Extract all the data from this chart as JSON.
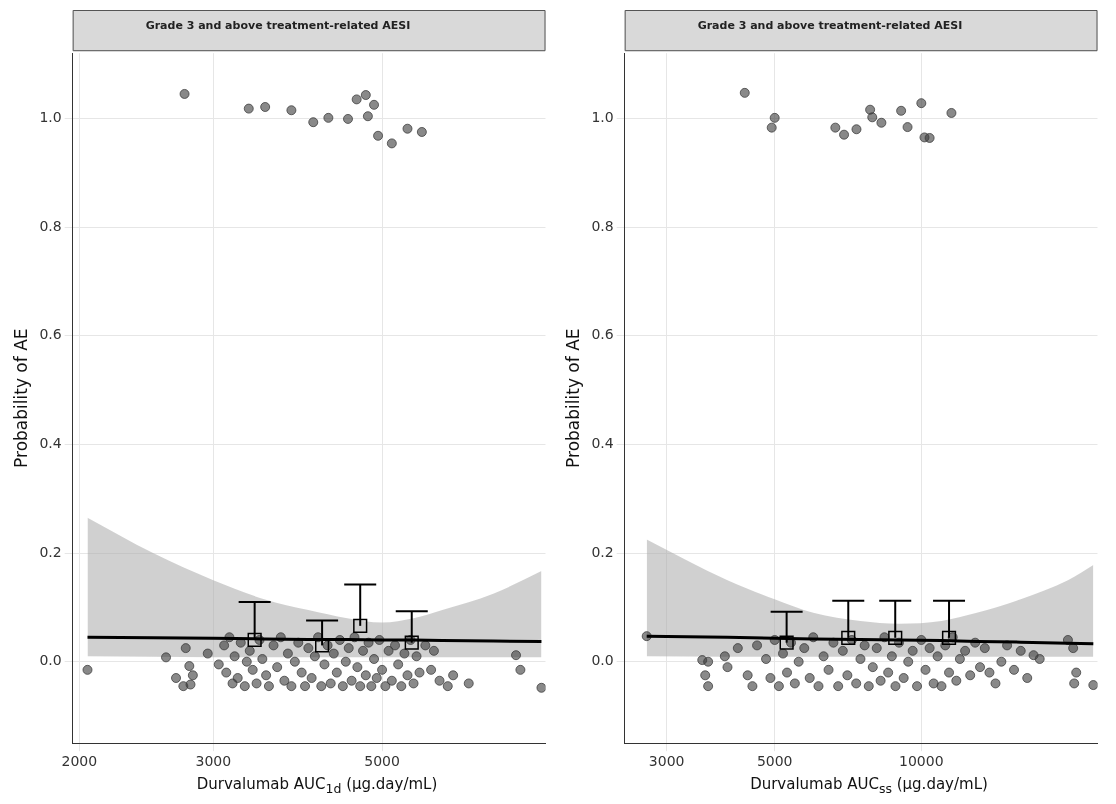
{
  "chart_data": [
    {
      "type": "scatter",
      "title": "Grade 3 and above treatment-related AESI",
      "xlabel": "Durvalumab AUC$_{1d}$ (µg.day/mL)",
      "ylabel": "Probability of AE",
      "log": "x",
      "grid": true,
      "xlim": [
        1960,
        8200
      ],
      "xticks": [
        2000,
        3000,
        5000
      ],
      "ylim": [
        -0.15,
        1.12
      ],
      "yticks": [
        {
          "value": 0,
          "label": "0.0"
        },
        {
          "value": 0.2,
          "label": "0.2"
        },
        {
          "value": 0.4,
          "label": "0.4"
        },
        {
          "value": 0.6,
          "label": "0.6"
        },
        {
          "value": 0.8,
          "label": "0.8"
        },
        {
          "value": 1,
          "label": "1.0"
        }
      ],
      "series": [
        {
          "type": "scatter",
          "marker": "circle",
          "color": "#3a3a3a",
          "x": [
            2750,
            3340,
            3510,
            3800,
            4060,
            4250,
            4510,
            4630,
            4760,
            4880,
            4790,
            4940,
            5150,
            5400,
            5640,
            2050,
            2600,
            2680,
            2740,
            2760,
            2790,
            2800,
            2820,
            2950,
            3050,
            3100,
            3120,
            3150,
            3180,
            3200,
            3230,
            3260,
            3300,
            3320,
            3350,
            3380,
            3420,
            3450,
            3480,
            3520,
            3550,
            3600,
            3640,
            3680,
            3720,
            3760,
            3800,
            3840,
            3880,
            3920,
            3960,
            4000,
            4040,
            4080,
            4120,
            4160,
            4200,
            4240,
            4280,
            4320,
            4360,
            4400,
            4440,
            4480,
            4520,
            4560,
            4600,
            4640,
            4680,
            4720,
            4760,
            4800,
            4840,
            4880,
            4920,
            4960,
            5000,
            5050,
            5100,
            5150,
            5200,
            5250,
            5300,
            5350,
            5400,
            5450,
            5500,
            5550,
            5600,
            5700,
            5800,
            5850,
            5950,
            6100,
            6200,
            6500,
            7500,
            7600,
            8100
          ],
          "values": [
            1.045,
            1.018,
            1.021,
            1.015,
            0.993,
            1.001,
            0.999,
            1.035,
            1.043,
            1.025,
            1.004,
            0.968,
            0.954,
            0.981,
            0.975,
            -0.015,
            0.008,
            -0.03,
            -0.045,
            0.025,
            -0.008,
            -0.042,
            -0.025,
            0.015,
            -0.005,
            0.03,
            -0.02,
            0.045,
            -0.04,
            0.01,
            -0.03,
            0.035,
            -0.045,
            0,
            0.02,
            -0.015,
            -0.04,
            0.04,
            0.005,
            -0.025,
            -0.045,
            0.03,
            -0.01,
            0.045,
            -0.035,
            0.015,
            -0.045,
            0,
            0.035,
            -0.02,
            -0.045,
            0.025,
            -0.03,
            0.01,
            0.045,
            -0.045,
            -0.005,
            0.03,
            -0.04,
            0.015,
            -0.02,
            0.04,
            -0.045,
            0,
            0.025,
            -0.035,
            0.045,
            -0.01,
            -0.045,
            0.02,
            -0.025,
            0.035,
            -0.045,
            0.005,
            -0.03,
            0.04,
            -0.015,
            -0.045,
            0.02,
            -0.035,
            0.03,
            -0.005,
            -0.045,
            0.015,
            -0.025,
            0.04,
            -0.04,
            0.01,
            -0.02,
            0.03,
            -0.015,
            0.02,
            -0.035,
            -0.045,
            -0.025,
            -0.04,
            0.012,
            -0.015,
            -0.048
          ]
        },
        {
          "type": "line",
          "color": "#000000",
          "x": [
            2050,
            2500,
            3000,
            3500,
            4000,
            4500,
            5000,
            5500,
            6000,
            7000,
            8100
          ],
          "values": [
            0.045,
            0.044,
            0.043,
            0.042,
            0.041,
            0.041,
            0.04,
            0.04,
            0.039,
            0.038,
            0.037
          ],
          "lower": [
            0.01,
            0.009,
            0.008,
            0.008,
            0.008,
            0.008,
            0.008,
            0.008,
            0.008,
            0.008,
            0.008
          ],
          "upper": [
            0.265,
            0.2,
            0.15,
            0.115,
            0.095,
            0.08,
            0.072,
            0.08,
            0.095,
            0.125,
            0.167
          ]
        },
        {
          "type": "scatter",
          "marker": "square",
          "color": "#000000",
          "x": [
            3400,
            4170,
            4680,
            5470
          ],
          "values": [
            0.04,
            0.03,
            0.066,
            0.035
          ],
          "errors": [
            [
              0.04,
              0.11
            ],
            [
              0.03,
              0.076
            ],
            [
              0.066,
              0.142
            ],
            [
              0.035,
              0.093
            ]
          ]
        }
      ]
    },
    {
      "type": "scatter",
      "title": "Grade 3 and above treatment-related AESI",
      "xlabel": "Durvalumab AUC$_{ss}$ (µg.day/mL)",
      "ylabel": "Probability of AE",
      "log": "x",
      "grid": true,
      "xlim": [
        2460,
        23000
      ],
      "xticks": [
        3000,
        5000,
        10000
      ],
      "ylim": [
        -0.15,
        1.12
      ],
      "yticks": [
        {
          "value": 0,
          "label": "0.0"
        },
        {
          "value": 0.2,
          "label": "0.2"
        },
        {
          "value": 0.4,
          "label": "0.4"
        },
        {
          "value": 0.6,
          "label": "0.6"
        },
        {
          "value": 0.8,
          "label": "0.8"
        },
        {
          "value": 1,
          "label": "1.0"
        }
      ],
      "series": [
        {
          "type": "scatter",
          "marker": "circle",
          "color": "#3a3a3a",
          "x": [
            4340,
            5000,
            4930,
            6660,
            6940,
            7360,
            7850,
            7930,
            8280,
            9090,
            9370,
            10000,
            10150,
            10400,
            11530,
            2730,
            3550,
            3600,
            3650,
            3650,
            3950,
            4000,
            4200,
            4400,
            4500,
            4600,
            4800,
            4900,
            5000,
            5100,
            5200,
            5300,
            5400,
            5500,
            5600,
            5750,
            5900,
            6000,
            6150,
            6300,
            6450,
            6600,
            6750,
            6900,
            7050,
            7200,
            7350,
            7500,
            7650,
            7800,
            7950,
            8100,
            8250,
            8400,
            8550,
            8700,
            8850,
            9000,
            9200,
            9400,
            9600,
            9800,
            10000,
            10200,
            10400,
            10600,
            10800,
            11000,
            11200,
            11400,
            11600,
            11800,
            12000,
            12300,
            12600,
            12900,
            13200,
            13500,
            13800,
            14200,
            14600,
            15000,
            15500,
            16000,
            16500,
            17000,
            17500,
            20000,
            20500,
            20800,
            20600,
            22550
          ],
          "values": [
            1.047,
            1.001,
            0.983,
            0.983,
            0.97,
            0.98,
            1.016,
            1.002,
            0.992,
            1.014,
            0.984,
            1.028,
            0.965,
            0.964,
            1.01,
            0.047,
            0.003,
            -0.025,
            -0.045,
            0,
            0.01,
            -0.01,
            0.025,
            -0.025,
            -0.045,
            0.03,
            0.005,
            -0.03,
            0.04,
            -0.045,
            0.015,
            -0.02,
            0.035,
            -0.04,
            0,
            0.025,
            -0.03,
            0.045,
            -0.045,
            0.01,
            -0.015,
            0.035,
            -0.045,
            0.02,
            -0.025,
            0.04,
            -0.04,
            0.005,
            0.03,
            -0.045,
            -0.01,
            0.025,
            -0.035,
            0.045,
            -0.02,
            0.01,
            -0.045,
            0.035,
            -0.03,
            0,
            0.02,
            -0.045,
            0.04,
            -0.015,
            0.025,
            -0.04,
            0.01,
            -0.045,
            0.03,
            -0.02,
            0.045,
            -0.035,
            0.005,
            0.02,
            -0.025,
            0.035,
            -0.01,
            0.025,
            -0.02,
            -0.04,
            0,
            0.03,
            -0.015,
            0.02,
            -0.03,
            0.012,
            0.005,
            0.04,
            0.025,
            -0.02,
            -0.04,
            -0.043
          ]
        },
        {
          "type": "line",
          "color": "#000000",
          "x": [
            2730,
            4000,
            5000,
            6000,
            7500,
            9000,
            11000,
            13000,
            16000,
            20000,
            22550
          ],
          "values": [
            0.047,
            0.045,
            0.043,
            0.042,
            0.041,
            0.04,
            0.039,
            0.037,
            0.036,
            0.034,
            0.033
          ],
          "lower": [
            0.01,
            0.009,
            0.009,
            0.009,
            0.009,
            0.009,
            0.009,
            0.009,
            0.009,
            0.009,
            0.009
          ],
          "upper": [
            0.225,
            0.15,
            0.115,
            0.09,
            0.075,
            0.07,
            0.075,
            0.09,
            0.115,
            0.15,
            0.178
          ]
        },
        {
          "type": "scatter",
          "marker": "square",
          "color": "#000000",
          "x": [
            5290,
            7080,
            8840,
            11400
          ],
          "values": [
            0.035,
            0.044,
            0.044,
            0.044
          ],
          "errors": [
            [
              0.035,
              0.092
            ],
            [
              0.044,
              0.112
            ],
            [
              0.044,
              0.112
            ],
            [
              0.044,
              0.112
            ]
          ]
        }
      ]
    }
  ]
}
